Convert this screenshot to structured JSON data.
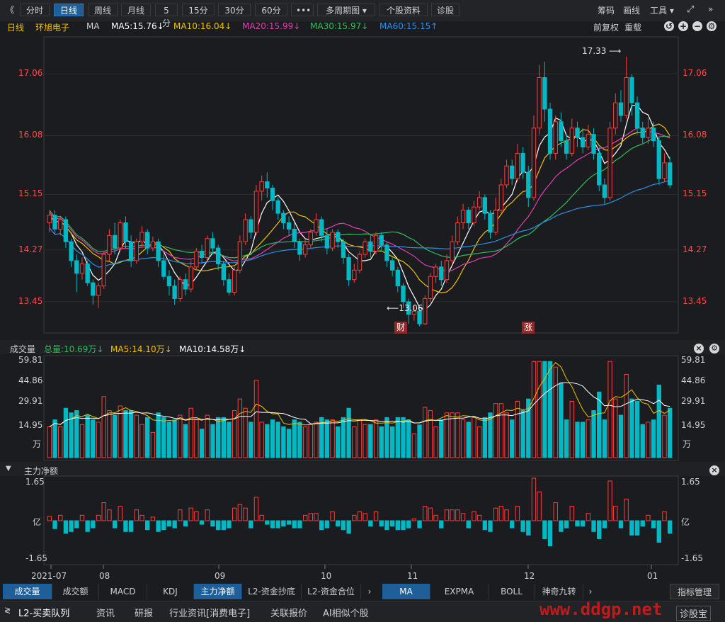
{
  "toolbar": {
    "back": "《",
    "tabs": [
      "分时",
      "日线",
      "周线",
      "月线",
      "5分",
      "15分",
      "30分",
      "60分",
      "•••",
      "多周期图 ▾",
      "个股资料",
      "诊股"
    ],
    "active": "日线",
    "right": [
      "筹码",
      "画线",
      "工具 ▾"
    ],
    "expand": "»"
  },
  "ma_bar": {
    "period": "日线",
    "name": "环旭电子",
    "ind": "MA",
    "ma5": "MA5:15.76↓",
    "ma10": "MA10:16.04↓",
    "ma20": "MA20:15.99↓",
    "ma30": "MA30:15.97↓",
    "ma60": "MA60:15.15↑",
    "adj": "前复权",
    "reload": "重载"
  },
  "colors": {
    "up": "#ff3b3b",
    "down": "#00b9c4",
    "ma5": "#ffffff",
    "ma10": "#f2c200",
    "ma20": "#e13fb0",
    "ma30": "#2fbe5b",
    "ma60": "#2e8ee6"
  },
  "chart_data": {
    "type": "candlestick",
    "y_ticks": [
      "17.06",
      "16.08",
      "15.15",
      "14.27",
      "13.45"
    ],
    "ylim": [
      13.0,
      17.6
    ],
    "x_ticks": [
      "2021-07",
      "08",
      "09",
      "10",
      "11",
      "12",
      "01"
    ],
    "annotations": {
      "high": "17.33",
      "low": "13.06",
      "event1": "财",
      "event2": "涨"
    },
    "candles": [
      [
        14.7,
        14.82,
        14.55,
        14.88
      ],
      [
        14.82,
        14.6,
        14.52,
        14.9
      ],
      [
        14.6,
        14.75,
        14.5,
        14.8
      ],
      [
        14.75,
        14.4,
        14.3,
        14.8
      ],
      [
        14.4,
        14.1,
        14.0,
        14.45
      ],
      [
        14.1,
        13.9,
        13.6,
        14.2
      ],
      [
        13.9,
        14.05,
        13.8,
        14.15
      ],
      [
        14.05,
        13.75,
        13.7,
        14.1
      ],
      [
        13.75,
        13.55,
        13.4,
        13.8
      ],
      [
        13.55,
        13.7,
        13.35,
        13.75
      ],
      [
        13.7,
        14.2,
        13.65,
        14.25
      ],
      [
        14.2,
        14.5,
        14.1,
        14.6
      ],
      [
        14.5,
        14.3,
        14.2,
        14.7
      ],
      [
        14.3,
        14.7,
        14.25,
        14.75
      ],
      [
        14.7,
        14.4,
        14.3,
        14.8
      ],
      [
        14.4,
        14.1,
        14.0,
        14.5
      ],
      [
        14.1,
        14.4,
        14.05,
        14.45
      ],
      [
        14.4,
        14.55,
        14.3,
        14.65
      ],
      [
        14.55,
        14.3,
        14.2,
        14.6
      ],
      [
        14.3,
        14.4,
        14.25,
        14.48
      ],
      [
        14.4,
        14.1,
        14.0,
        14.45
      ],
      [
        14.1,
        13.85,
        13.8,
        14.2
      ],
      [
        13.85,
        13.7,
        13.55,
        13.95
      ],
      [
        13.7,
        13.5,
        13.4,
        13.8
      ],
      [
        13.5,
        13.8,
        13.45,
        13.85
      ],
      [
        13.8,
        13.65,
        13.55,
        13.9
      ],
      [
        13.65,
        14.0,
        13.6,
        14.1
      ],
      [
        14.0,
        14.25,
        13.95,
        14.3
      ],
      [
        14.25,
        14.15,
        14.05,
        14.35
      ],
      [
        14.15,
        14.45,
        14.1,
        14.5
      ],
      [
        14.45,
        14.3,
        14.2,
        14.55
      ],
      [
        14.3,
        14.05,
        13.95,
        14.35
      ],
      [
        14.05,
        13.8,
        13.7,
        14.1
      ],
      [
        13.8,
        13.6,
        13.55,
        13.9
      ],
      [
        13.6,
        13.95,
        13.55,
        14.0
      ],
      [
        13.95,
        14.4,
        13.9,
        14.5
      ],
      [
        14.4,
        14.75,
        14.35,
        14.85
      ],
      [
        14.75,
        14.55,
        14.45,
        14.8
      ],
      [
        14.55,
        15.2,
        14.5,
        15.3
      ],
      [
        15.2,
        15.35,
        15.05,
        15.45
      ],
      [
        15.35,
        15.25,
        15.1,
        15.5
      ],
      [
        15.25,
        15.05,
        14.9,
        15.3
      ],
      [
        15.05,
        14.85,
        14.75,
        15.1
      ],
      [
        14.85,
        14.7,
        14.6,
        14.9
      ],
      [
        14.7,
        14.6,
        14.5,
        14.8
      ],
      [
        14.6,
        14.4,
        14.3,
        14.7
      ],
      [
        14.4,
        14.2,
        14.1,
        14.45
      ],
      [
        14.2,
        14.35,
        14.15,
        14.45
      ],
      [
        14.35,
        14.55,
        14.3,
        14.6
      ],
      [
        14.55,
        14.75,
        14.5,
        14.85
      ],
      [
        14.75,
        14.5,
        14.4,
        14.8
      ],
      [
        14.5,
        14.3,
        14.2,
        14.6
      ],
      [
        14.3,
        14.55,
        14.25,
        14.6
      ],
      [
        14.55,
        14.4,
        14.3,
        14.6
      ],
      [
        14.4,
        14.15,
        14.05,
        14.45
      ],
      [
        14.15,
        13.8,
        13.7,
        14.2
      ],
      [
        13.8,
        13.95,
        13.75,
        14.05
      ],
      [
        13.95,
        14.2,
        13.9,
        14.25
      ],
      [
        14.2,
        14.4,
        14.15,
        14.45
      ],
      [
        14.4,
        14.25,
        14.15,
        14.5
      ],
      [
        14.25,
        14.5,
        14.2,
        14.55
      ],
      [
        14.5,
        14.35,
        14.25,
        14.55
      ],
      [
        14.35,
        14.1,
        14.0,
        14.4
      ],
      [
        14.1,
        13.95,
        13.85,
        14.15
      ],
      [
        13.95,
        13.7,
        13.6,
        14.0
      ],
      [
        13.7,
        13.45,
        13.35,
        13.75
      ],
      [
        13.45,
        13.25,
        13.1,
        13.5
      ],
      [
        13.25,
        13.3,
        13.15,
        13.4
      ],
      [
        13.3,
        13.1,
        13.06,
        13.35
      ],
      [
        13.1,
        13.5,
        13.08,
        13.55
      ],
      [
        13.5,
        13.85,
        13.45,
        13.9
      ],
      [
        13.85,
        14.0,
        13.75,
        14.05
      ],
      [
        14.0,
        13.8,
        13.7,
        14.1
      ],
      [
        13.8,
        14.1,
        13.75,
        14.2
      ],
      [
        14.1,
        14.4,
        14.05,
        14.5
      ],
      [
        14.4,
        14.7,
        14.35,
        14.8
      ],
      [
        14.7,
        14.9,
        14.6,
        15.0
      ],
      [
        14.9,
        14.7,
        14.6,
        14.95
      ],
      [
        14.7,
        14.95,
        14.65,
        15.05
      ],
      [
        14.95,
        15.1,
        14.9,
        15.2
      ],
      [
        15.1,
        14.85,
        14.75,
        15.15
      ],
      [
        14.85,
        14.55,
        14.45,
        14.9
      ],
      [
        14.55,
        14.9,
        14.5,
        15.1
      ],
      [
        14.9,
        15.3,
        14.85,
        15.4
      ],
      [
        15.3,
        15.6,
        15.25,
        15.7
      ],
      [
        15.6,
        15.4,
        15.3,
        15.7
      ],
      [
        15.4,
        15.8,
        15.35,
        15.95
      ],
      [
        15.8,
        15.5,
        15.4,
        15.9
      ],
      [
        15.5,
        15.1,
        14.95,
        15.6
      ],
      [
        15.1,
        16.2,
        15.05,
        16.4
      ],
      [
        16.2,
        17.0,
        16.1,
        17.2
      ],
      [
        17.0,
        16.5,
        16.3,
        17.25
      ],
      [
        16.5,
        15.8,
        15.7,
        16.6
      ],
      [
        15.8,
        16.3,
        15.7,
        16.4
      ],
      [
        16.3,
        16.0,
        15.9,
        16.45
      ],
      [
        16.0,
        15.8,
        15.7,
        16.1
      ],
      [
        15.8,
        16.2,
        15.75,
        16.35
      ],
      [
        16.2,
        16.05,
        15.9,
        16.3
      ],
      [
        16.05,
        15.9,
        15.8,
        16.2
      ],
      [
        15.9,
        16.1,
        15.85,
        16.25
      ],
      [
        16.1,
        15.8,
        15.7,
        16.2
      ],
      [
        15.8,
        15.3,
        15.2,
        15.9
      ],
      [
        15.3,
        15.1,
        15.0,
        15.4
      ],
      [
        15.1,
        16.2,
        15.05,
        16.3
      ],
      [
        16.2,
        16.6,
        16.1,
        16.75
      ],
      [
        16.6,
        16.4,
        16.3,
        16.8
      ],
      [
        16.4,
        17.0,
        16.35,
        17.33
      ],
      [
        17.0,
        16.6,
        16.4,
        17.05
      ],
      [
        16.6,
        16.2,
        16.1,
        16.7
      ],
      [
        16.2,
        16.05,
        15.95,
        16.3
      ],
      [
        16.05,
        16.2,
        15.95,
        16.35
      ],
      [
        16.2,
        16.0,
        15.9,
        16.3
      ],
      [
        16.0,
        15.4,
        15.3,
        16.05
      ],
      [
        15.4,
        15.65,
        15.35,
        15.8
      ],
      [
        15.65,
        15.3,
        15.25,
        15.75
      ]
    ],
    "ma_series": {
      "ma5": [
        14.7,
        14.6,
        14.4,
        14.2,
        14.0,
        13.9,
        13.8,
        13.7,
        13.8,
        13.9,
        14.1,
        14.3,
        14.4,
        14.4,
        14.3,
        14.3,
        14.3,
        14.2,
        14.1,
        13.95,
        13.85,
        13.8,
        13.85,
        13.95,
        14.05,
        14.15,
        14.2,
        14.2,
        14.15,
        14.05,
        13.95,
        13.9,
        14.05,
        14.3,
        14.6,
        14.9,
        15.1,
        15.0,
        14.8,
        14.65,
        14.5,
        14.35,
        14.35,
        14.45,
        14.5,
        14.5,
        14.4,
        14.35,
        14.3,
        14.25,
        14.2,
        14.1,
        14.0,
        13.85,
        13.7,
        13.55,
        13.4,
        13.3,
        13.2,
        13.3,
        13.5,
        13.7,
        13.9,
        14.2,
        14.5,
        14.75,
        14.85,
        14.9,
        14.9,
        14.95,
        15.1,
        15.35,
        15.55,
        15.7,
        16.2,
        16.6,
        16.6,
        16.3,
        16.1,
        16.1,
        16.0,
        15.95,
        15.9,
        15.7,
        15.7,
        15.95,
        16.3,
        16.75,
        16.55,
        16.2,
        16.05,
        15.95,
        15.8,
        15.76
      ],
      "ma10": [
        15.5,
        15.3,
        15.1,
        14.9,
        14.6,
        14.4,
        14.25,
        14.15,
        14.05,
        14.0,
        14.05,
        14.15,
        14.25,
        14.3,
        14.3,
        14.3,
        14.25,
        14.15,
        14.05,
        14.0,
        13.95,
        13.95,
        14.0,
        14.05,
        14.1,
        14.15,
        14.2,
        14.3,
        14.45,
        14.6,
        14.7,
        14.75,
        14.75,
        14.7,
        14.65,
        14.6,
        14.55,
        14.5,
        14.45,
        14.4,
        14.3,
        14.2,
        14.1,
        13.95,
        13.8,
        13.7,
        13.65,
        13.7,
        13.8,
        14.0,
        14.2,
        14.4,
        14.55,
        14.65,
        14.75,
        14.85,
        14.95,
        15.1,
        15.3,
        15.55,
        15.8,
        15.95,
        16.0,
        16.05,
        16.05,
        16.0,
        15.95,
        15.95,
        16.05,
        16.15,
        16.25,
        16.2,
        16.15,
        16.1,
        16.04
      ]
    },
    "volume": {
      "label": "成交量",
      "total": "总量:10.69万↓",
      "ma5": "MA5:14.10万↓",
      "ma10": "MA10:14.58万↓",
      "y_ticks": [
        "59.81",
        "44.86",
        "29.91",
        "14.95",
        "万"
      ],
      "ylim": [
        0,
        59.81
      ]
    },
    "flow": {
      "label": "主力净额",
      "y_ticks": [
        "1.65",
        "亿",
        "-1.65"
      ],
      "ylim": [
        -1.65,
        1.65
      ]
    }
  },
  "bottom_tabs_left": [
    "成交量",
    "成交额",
    "MACD",
    "KDJ",
    "主力净额",
    "L2-资金抄底",
    "L2-资金合位"
  ],
  "bottom_tabs_left_active": [
    "成交量",
    "主力净额"
  ],
  "bottom_tabs_mid": [
    "MA",
    "EXPMA",
    "BOLL",
    "神奇九转"
  ],
  "bottom_tabs_mid_active": "MA",
  "manage": "指标管理",
  "bottom_bar": [
    "L2-买卖队列",
    "资讯",
    "研报",
    "行业资讯[消费电子]",
    "关联报价",
    "AI相似个股"
  ],
  "bottom_right": "诊股宝",
  "watermark": "www.ddgp.net"
}
